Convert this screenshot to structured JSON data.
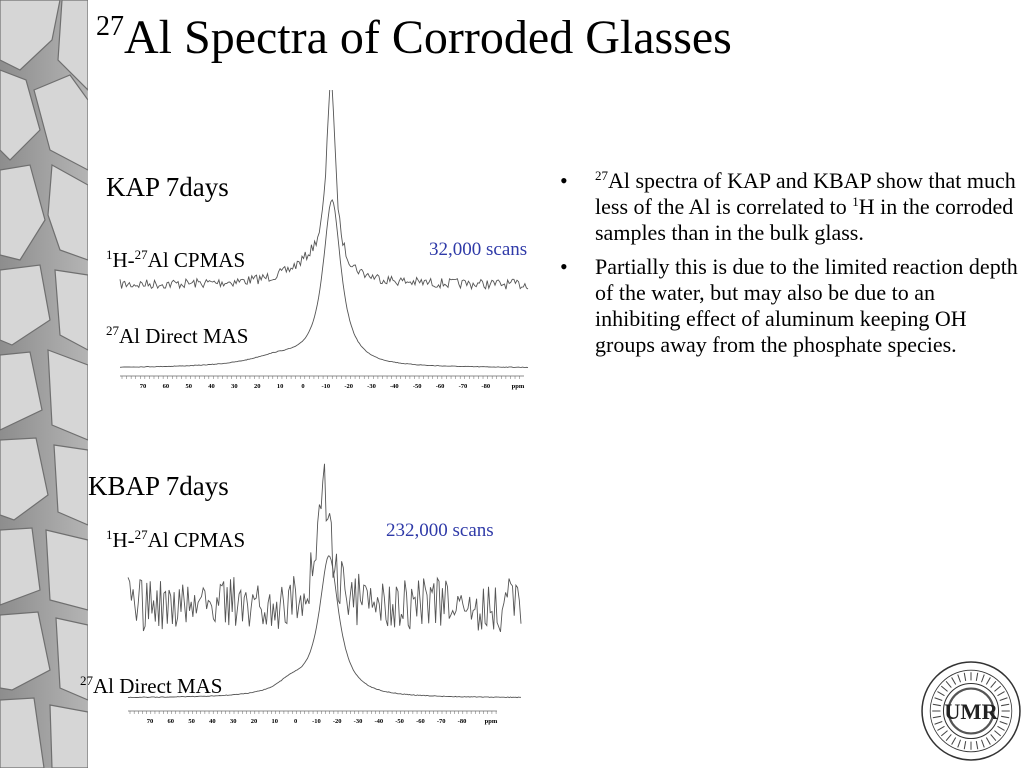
{
  "title": {
    "superscript": "27",
    "text": "Al Spectra of Corroded Glasses"
  },
  "kap": {
    "sample_label": "KAP   7days",
    "cpmas_label": {
      "sup1": "1",
      "h": "H-",
      "sup2": "27",
      "rest": "Al  CPMAS"
    },
    "direct_label": {
      "sup": "27",
      "rest": "Al Direct MAS"
    },
    "scans": "32,000 scans",
    "axis_ticks": [
      "70",
      "60",
      "50",
      "40",
      "30",
      "20",
      "10",
      "0",
      "-10",
      "-20",
      "-30",
      "-40",
      "-50",
      "-60",
      "-70",
      "-80"
    ],
    "axis_unit": "ppm"
  },
  "kbap": {
    "sample_label": "KBAP   7days",
    "cpmas_label": {
      "sup1": "1",
      "h": "H-",
      "sup2": "27",
      "rest": "Al  CPMAS"
    },
    "direct_label": {
      "sup": "27",
      "rest": "Al Direct MAS"
    },
    "scans": "232,000 scans",
    "axis_ticks": [
      "70",
      "60",
      "50",
      "40",
      "30",
      "20",
      "10",
      "0",
      "-10",
      "-20",
      "-30",
      "-40",
      "-50",
      "-60",
      "-70",
      "-80"
    ],
    "axis_unit": "ppm"
  },
  "bullets": [
    {
      "sup": "27",
      "t1": "Al spectra of KAP and KBAP show that much less of the Al is correlated to ",
      "sup2": "1",
      "t2": "H in the corroded samples than in the bulk glass."
    },
    {
      "sup": "",
      "t1": "Partially this is due to the limited reaction depth of the water, but may also be due to an inhibiting effect of aluminum keeping OH groups away from the phosphate species.",
      "sup2": "",
      "t2": ""
    }
  ],
  "bullet_char": "•",
  "seal": {
    "monogram": "UMR"
  },
  "colors": {
    "scans": "#2f3aa8",
    "trace": "#555555",
    "strip": "#9a9a9a"
  }
}
